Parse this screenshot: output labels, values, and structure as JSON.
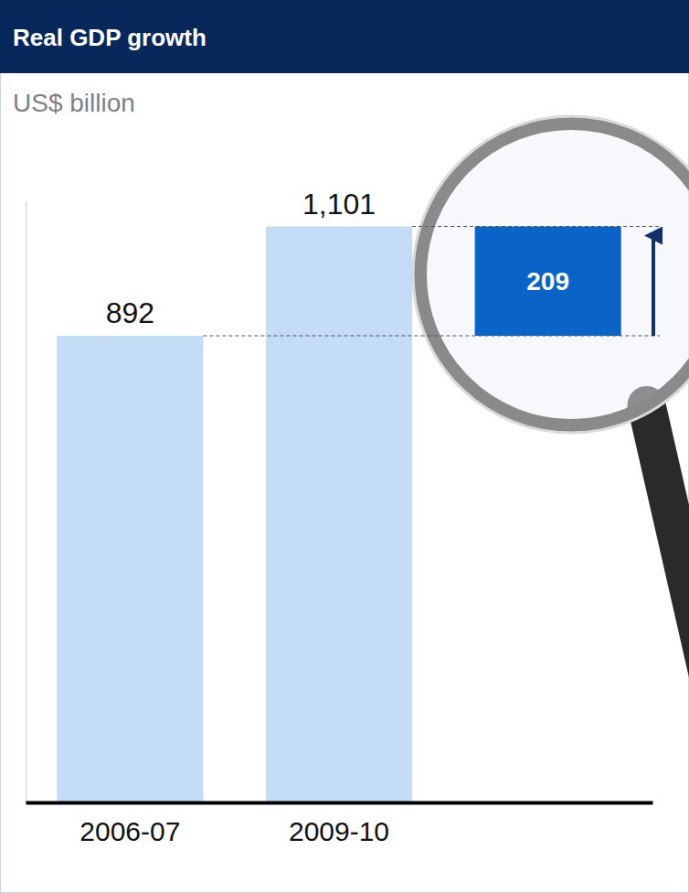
{
  "chart_data": {
    "type": "bar",
    "title": "Real GDP growth",
    "subtitle": "US$ billion",
    "categories": [
      "2006-07",
      "2009-10"
    ],
    "values": [
      892,
      1101
    ],
    "value_labels": [
      "892",
      "1,101"
    ],
    "data_labels": true,
    "difference": 209,
    "color": "#c5dcf6",
    "ylim": [
      0,
      1150
    ],
    "yticks": [],
    "tick_labels": "x",
    "grid": false
  }
}
